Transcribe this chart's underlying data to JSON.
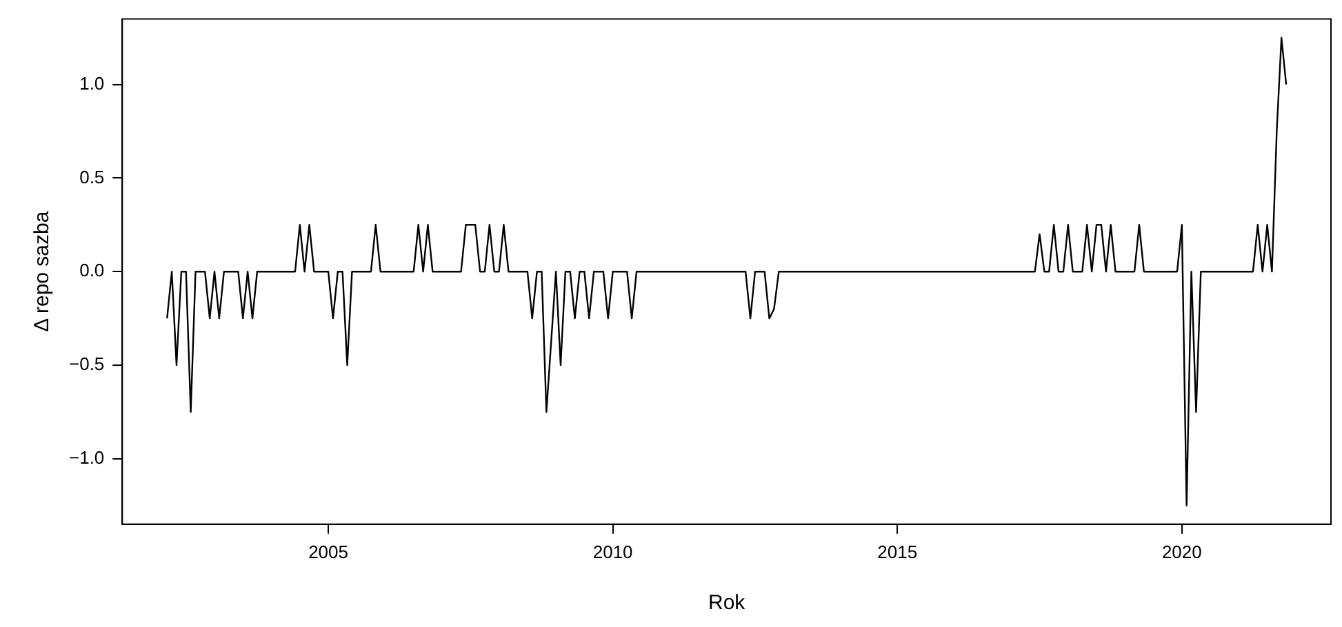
{
  "chart_data": {
    "type": "line",
    "xlabel": "Rok",
    "ylabel": "Δ repo sazba",
    "color": "#000000",
    "marker": "none",
    "line_style": "solid",
    "x": [
      2002.167,
      2002.25,
      2002.333,
      2002.417,
      2002.5,
      2002.583,
      2002.667,
      2002.833,
      2002.917,
      2003.0,
      2003.083,
      2003.167,
      2003.417,
      2003.5,
      2003.583,
      2003.667,
      2003.75,
      2004.417,
      2004.5,
      2004.583,
      2004.667,
      2004.75,
      2005.0,
      2005.083,
      2005.167,
      2005.25,
      2005.333,
      2005.417,
      2005.75,
      2005.833,
      2005.917,
      2006.5,
      2006.583,
      2006.667,
      2006.75,
      2006.833,
      2007.333,
      2007.417,
      2007.583,
      2007.667,
      2007.75,
      2007.833,
      2007.917,
      2008.0,
      2008.083,
      2008.167,
      2008.5,
      2008.583,
      2008.667,
      2008.75,
      2008.833,
      2009.0,
      2009.083,
      2009.167,
      2009.25,
      2009.333,
      2009.417,
      2009.5,
      2009.583,
      2009.667,
      2009.833,
      2009.917,
      2010.0,
      2010.25,
      2010.333,
      2010.417,
      2012.333,
      2012.417,
      2012.5,
      2012.583,
      2012.667,
      2012.75,
      2012.833,
      2012.917,
      2017.417,
      2017.5,
      2017.583,
      2017.667,
      2017.75,
      2017.833,
      2017.917,
      2018.0,
      2018.083,
      2018.25,
      2018.333,
      2018.417,
      2018.5,
      2018.583,
      2018.667,
      2018.75,
      2018.833,
      2019.167,
      2019.25,
      2019.333,
      2019.917,
      2020.0,
      2020.083,
      2020.167,
      2020.25,
      2020.333,
      2021.25,
      2021.333,
      2021.417,
      2021.5,
      2021.583,
      2021.667,
      2021.75,
      2021.833
    ],
    "values": [
      -0.25,
      0,
      -0.5,
      0,
      0,
      -0.75,
      0,
      0,
      -0.25,
      0,
      -0.25,
      0,
      0,
      -0.25,
      0,
      -0.25,
      0,
      0,
      0.25,
      0,
      0.25,
      0,
      0,
      -0.25,
      0,
      0,
      -0.5,
      0,
      0,
      0.25,
      0,
      0,
      0.25,
      0,
      0.25,
      0,
      0,
      0.25,
      0.25,
      0,
      0,
      0.25,
      0,
      0,
      0.25,
      0,
      0,
      -0.25,
      0,
      0,
      -0.75,
      0,
      -0.5,
      0,
      0,
      -0.25,
      0,
      0,
      -0.25,
      0,
      0,
      -0.25,
      0,
      0,
      -0.25,
      0,
      0,
      -0.25,
      0,
      0,
      0,
      -0.25,
      -0.2,
      0,
      0,
      0.2,
      0,
      0,
      0.25,
      0,
      0,
      0.25,
      0,
      0,
      0.25,
      0,
      0.25,
      0.25,
      0,
      0.25,
      0,
      0,
      0.25,
      0,
      0,
      0.25,
      -1.25,
      0,
      -0.75,
      0,
      0,
      0.25,
      0,
      0.25,
      0,
      0.75,
      1.25,
      1.0
    ],
    "xlim": [
      2001.38,
      2022.62
    ],
    "xticks": [
      2005,
      2010,
      2015,
      2020
    ],
    "ylim": [
      -1.35,
      1.35
    ],
    "yticks": [
      {
        "value": -1,
        "label": "−1.0"
      },
      {
        "value": -0.5,
        "label": "−0.5"
      },
      {
        "value": 0,
        "label": "0.0"
      },
      {
        "value": 0.5,
        "label": "0.5"
      },
      {
        "value": 1,
        "label": "1.0"
      }
    ]
  }
}
